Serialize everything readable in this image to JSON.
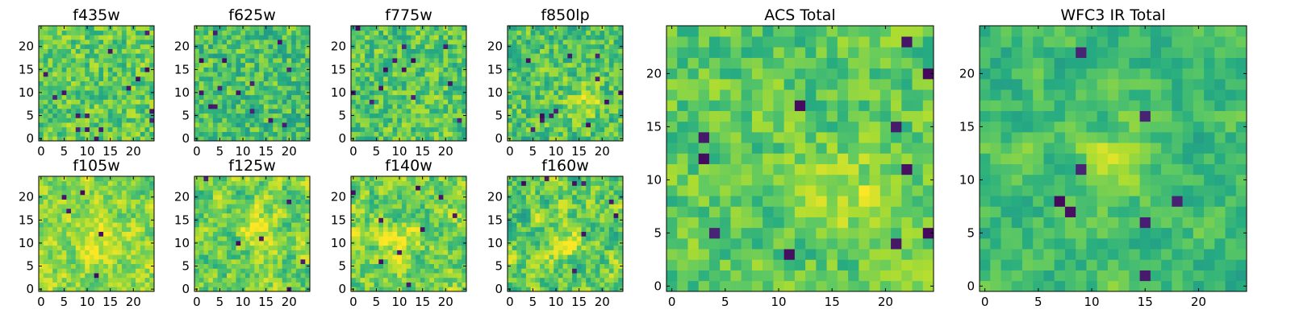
{
  "chart_data": {
    "type": "heatmap",
    "grid_size": [
      25,
      25
    ],
    "colormap": "viridis",
    "color_range": [
      0,
      1
    ],
    "panels": [
      {
        "title": "f435w",
        "x_ticks": [
          "0",
          "5",
          "10",
          "15",
          "20"
        ],
        "y_ticks": [
          "0",
          "5",
          "10",
          "15",
          "20"
        ],
        "xlim": [
          -0.5,
          24.5
        ],
        "ylim": [
          -0.5,
          24.5
        ],
        "seed": 435,
        "base": 0.75,
        "spread": 0.19,
        "smoothing": 0.15,
        "dark_spots": 16,
        "bright_center": null
      },
      {
        "title": "f625w",
        "x_ticks": [
          "0",
          "5",
          "10",
          "15",
          "20"
        ],
        "y_ticks": [
          "0",
          "5",
          "10",
          "15",
          "20"
        ],
        "xlim": [
          -0.5,
          24.5
        ],
        "ylim": [
          -0.5,
          24.5
        ],
        "seed": 625,
        "base": 0.7,
        "spread": 0.2,
        "smoothing": 0.15,
        "dark_spots": 14,
        "bright_center": null
      },
      {
        "title": "f775w",
        "x_ticks": [
          "0",
          "5",
          "10",
          "15",
          "20"
        ],
        "y_ticks": [
          "0",
          "5",
          "10",
          "15",
          "20"
        ],
        "xlim": [
          -0.5,
          24.5
        ],
        "ylim": [
          -0.5,
          24.5
        ],
        "seed": 775,
        "base": 0.73,
        "spread": 0.2,
        "smoothing": 0.15,
        "dark_spots": 13,
        "bright_center": null
      },
      {
        "title": "f850lp",
        "x_ticks": [
          "0",
          "5",
          "10",
          "15",
          "20"
        ],
        "y_ticks": [
          "0",
          "5",
          "10",
          "15",
          "20"
        ],
        "xlim": [
          -0.5,
          24.5
        ],
        "ylim": [
          -0.5,
          24.5
        ],
        "seed": 850,
        "base": 0.72,
        "spread": 0.2,
        "smoothing": 0.15,
        "dark_spots": 12,
        "bright_center": [
          16,
          8
        ]
      },
      {
        "title": "f105w",
        "x_ticks": [
          "0",
          "5",
          "10",
          "15",
          "20"
        ],
        "y_ticks": [
          "0",
          "5",
          "10",
          "15",
          "20"
        ],
        "xlim": [
          -0.5,
          24.5
        ],
        "ylim": [
          -0.5,
          24.5
        ],
        "seed": 105,
        "base": 0.82,
        "spread": 0.15,
        "smoothing": 0.5,
        "dark_spots": 5,
        "bright_center": [
          12,
          11
        ]
      },
      {
        "title": "f125w",
        "x_ticks": [
          "0",
          "5",
          "10",
          "15",
          "20"
        ],
        "y_ticks": [
          "0",
          "5",
          "10",
          "15",
          "20"
        ],
        "xlim": [
          -0.5,
          24.5
        ],
        "ylim": [
          -0.5,
          24.5
        ],
        "seed": 125,
        "base": 0.78,
        "spread": 0.17,
        "smoothing": 0.5,
        "dark_spots": 6,
        "bright_center": [
          14,
          13
        ]
      },
      {
        "title": "f140w",
        "x_ticks": [
          "0",
          "5",
          "10",
          "15",
          "20"
        ],
        "y_ticks": [
          "0",
          "5",
          "10",
          "15",
          "20"
        ],
        "xlim": [
          -0.5,
          24.5
        ],
        "ylim": [
          -0.5,
          24.5
        ],
        "seed": 140,
        "base": 0.78,
        "spread": 0.17,
        "smoothing": 0.5,
        "dark_spots": 9,
        "bright_center": [
          11,
          10
        ]
      },
      {
        "title": "f160w",
        "x_ticks": [
          "0",
          "5",
          "10",
          "15",
          "20"
        ],
        "y_ticks": [
          "0",
          "5",
          "10",
          "15",
          "20"
        ],
        "xlim": [
          -0.5,
          24.5
        ],
        "ylim": [
          -0.5,
          24.5
        ],
        "seed": 160,
        "base": 0.76,
        "spread": 0.18,
        "smoothing": 0.5,
        "dark_spots": 8,
        "bright_center": [
          12,
          10
        ]
      },
      {
        "title": "ACS Total",
        "x_ticks": [
          "0",
          "5",
          "10",
          "15",
          "20"
        ],
        "y_ticks": [
          "0",
          "5",
          "10",
          "15",
          "20"
        ],
        "xlim": [
          -0.5,
          24.5
        ],
        "ylim": [
          -0.5,
          24.5
        ],
        "seed": 999,
        "base": 0.74,
        "spread": 0.17,
        "smoothing": 0.25,
        "dark_spots": 12,
        "bright_center": [
          16,
          9
        ]
      },
      {
        "title": "WFC3 IR Total",
        "x_ticks": [
          "0",
          "5",
          "10",
          "15",
          "20"
        ],
        "y_ticks": [
          "0",
          "5",
          "10",
          "15",
          "20"
        ],
        "xlim": [
          -0.5,
          24.5
        ],
        "ylim": [
          -0.5,
          24.5
        ],
        "seed": 777,
        "base": 0.68,
        "spread": 0.13,
        "smoothing": 0.6,
        "dark_spots": 8,
        "bright_center": [
          12,
          12
        ]
      }
    ]
  }
}
